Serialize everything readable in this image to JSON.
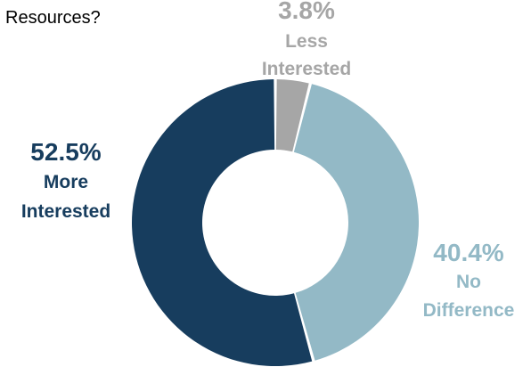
{
  "chart_data": {
    "type": "pie",
    "title": "Resources?",
    "hole": true,
    "categories": [
      "Less Interested",
      "No Difference",
      "More Interested"
    ],
    "values": [
      3.8,
      40.4,
      52.5
    ],
    "colors": [
      "#a6a6a6",
      "#93b9c6",
      "#173d5e"
    ],
    "labels": [
      {
        "pct": "3.8%",
        "lines": [
          "Less",
          "Interested"
        ]
      },
      {
        "pct": "40.4%",
        "lines": [
          "No",
          "Difference"
        ]
      },
      {
        "pct": "52.5%",
        "lines": [
          "More",
          "Interested"
        ]
      }
    ]
  }
}
